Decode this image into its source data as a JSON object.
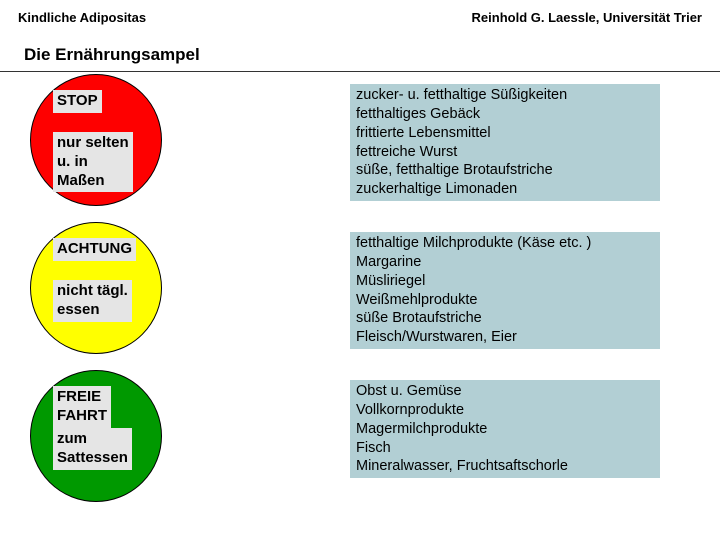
{
  "header": {
    "left": "Kindliche Adipositas",
    "right": "Reinhold G. Laessle, Universität Trier"
  },
  "title": "Die Ernährungsampel",
  "colors": {
    "red": "#fe0000",
    "yellow": "#ffff00",
    "green": "#009900",
    "desc_bg": "#b2cfd4",
    "label_bg": "#e5e5e5"
  },
  "rows": {
    "red": {
      "label_top": "STOP",
      "label_bot": "nur selten\nu. in\nMaßen",
      "desc": "zucker- u. fetthaltige Süßigkeiten\nfetthaltiges Gebäck\nfrittierte Lebensmittel\nfettreiche Wurst\nsüße, fetthaltige Brotaufstriche\nzuckerhaltige Limonaden"
    },
    "yellow": {
      "label_top": "ACHTUNG",
      "label_bot": "nicht tägl.\nessen",
      "desc": "fetthaltige Milchprodukte (Käse etc. )\nMargarine\nMüsliriegel\nWeißmehlprodukte\nsüße Brotaufstriche\nFleisch/Wurstwaren, Eier"
    },
    "green": {
      "label_top": "FREIE\nFAHRT",
      "label_bot": "zum\nSattessen",
      "desc": "Obst u. Gemüse\nVollkornprodukte\nMagermilchprodukte\nFisch\nMineralwasser, Fruchtsaftschorle"
    }
  }
}
